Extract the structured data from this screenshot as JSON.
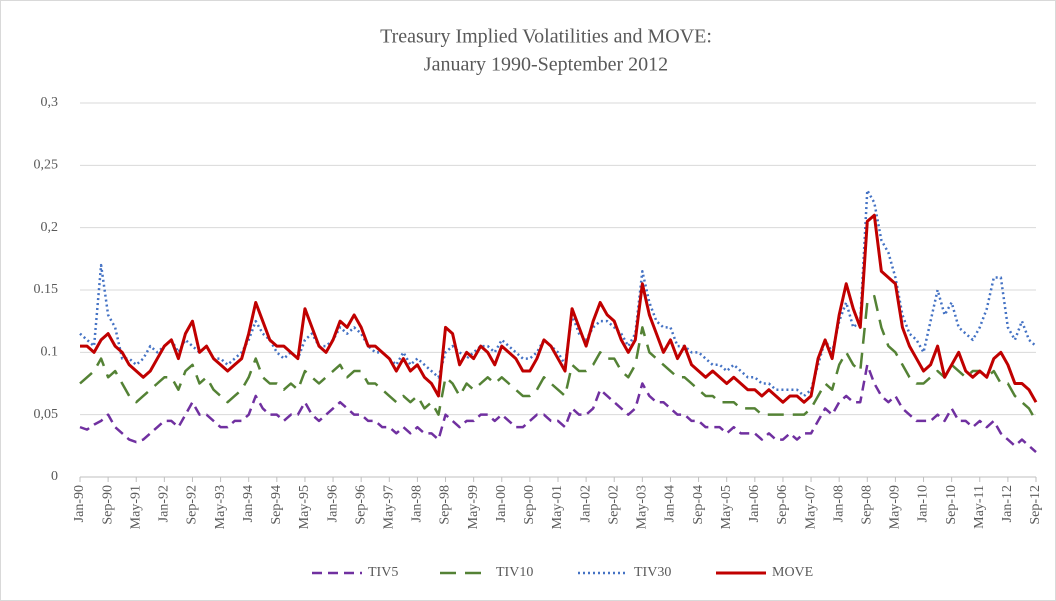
{
  "chart_data": {
    "type": "line",
    "title": "Treasury Implied Volatilities  and MOVE:",
    "subtitle": "January 1990-September 2012",
    "categories": [
      "Jan-90",
      null,
      null,
      null,
      "Sep-90",
      null,
      null,
      null,
      "May-91",
      null,
      null,
      null,
      "Jan-92",
      null,
      null,
      null,
      "Sep-92",
      null,
      null,
      null,
      "May-93",
      null,
      null,
      null,
      "Jan-94",
      null,
      null,
      null,
      "Sep-94",
      null,
      null,
      null,
      "May-95",
      null,
      null,
      null,
      "Jan-96",
      null,
      null,
      null,
      "Sep-96",
      null,
      null,
      null,
      "May-97",
      null,
      null,
      null,
      "Jan-98",
      null,
      null,
      null,
      "Sep-98",
      null,
      null,
      null,
      "May-99",
      null,
      null,
      null,
      "Jan-00",
      null,
      null,
      null,
      "Sep-00",
      null,
      null,
      null,
      "May-01",
      null,
      null,
      null,
      "Jan-02",
      null,
      null,
      null,
      "Sep-02",
      null,
      null,
      null,
      "May-03",
      null,
      null,
      null,
      "Jan-04",
      null,
      null,
      null,
      "Sep-04",
      null,
      null,
      null,
      "May-05",
      null,
      null,
      null,
      "Jan-06",
      null,
      null,
      null,
      "Sep-06",
      null,
      null,
      null,
      "May-07",
      null,
      null,
      null,
      "Jan-08",
      null,
      null,
      null,
      "Sep-08",
      null,
      null,
      null,
      "May-09",
      null,
      null,
      null,
      "Jan-10",
      null,
      null,
      null,
      "Sep-10",
      null,
      null,
      null,
      "May-11",
      null,
      null,
      null,
      "Jan-12",
      null,
      null,
      null,
      "Sep-12"
    ],
    "series": [
      {
        "name": "TIV5",
        "color": "#7030a0",
        "style": "dashed",
        "values": [
          0.04,
          0.038,
          0.042,
          0.045,
          0.05,
          0.04,
          0.035,
          0.03,
          0.028,
          0.03,
          0.035,
          0.04,
          0.045,
          0.045,
          0.04,
          0.05,
          0.06,
          0.05,
          0.05,
          0.045,
          0.04,
          0.04,
          0.045,
          0.045,
          0.05,
          0.065,
          0.055,
          0.05,
          0.05,
          0.045,
          0.05,
          0.05,
          0.06,
          0.05,
          0.045,
          0.05,
          0.055,
          0.06,
          0.055,
          0.05,
          0.05,
          0.045,
          0.045,
          0.04,
          0.04,
          0.035,
          0.04,
          0.035,
          0.04,
          0.035,
          0.035,
          0.03,
          0.05,
          0.045,
          0.04,
          0.045,
          0.045,
          0.05,
          0.05,
          0.045,
          0.05,
          0.045,
          0.04,
          0.04,
          0.045,
          0.05,
          0.05,
          0.045,
          0.045,
          0.04,
          0.055,
          0.05,
          0.05,
          0.055,
          0.07,
          0.065,
          0.06,
          0.055,
          0.05,
          0.055,
          0.075,
          0.065,
          0.06,
          0.06,
          0.055,
          0.05,
          0.05,
          0.045,
          0.045,
          0.04,
          0.04,
          0.04,
          0.035,
          0.04,
          0.035,
          0.035,
          0.035,
          0.03,
          0.035,
          0.03,
          0.03,
          0.035,
          0.03,
          0.035,
          0.035,
          0.045,
          0.055,
          0.05,
          0.06,
          0.065,
          0.06,
          0.06,
          0.09,
          0.075,
          0.065,
          0.06,
          0.065,
          0.055,
          0.05,
          0.045,
          0.045,
          0.045,
          0.05,
          0.045,
          0.055,
          0.045,
          0.045,
          0.04,
          0.045,
          0.04,
          0.045,
          0.035,
          0.03,
          0.025,
          0.03,
          0.025,
          0.02
        ]
      },
      {
        "name": "TIV10",
        "color": "#548235",
        "style": "longdash",
        "values": [
          0.075,
          0.08,
          0.085,
          0.095,
          0.08,
          0.085,
          0.075,
          0.065,
          0.06,
          0.065,
          0.07,
          0.075,
          0.08,
          0.08,
          0.07,
          0.085,
          0.09,
          0.075,
          0.08,
          0.07,
          0.065,
          0.06,
          0.065,
          0.07,
          0.08,
          0.095,
          0.08,
          0.075,
          0.075,
          0.07,
          0.075,
          0.07,
          0.085,
          0.08,
          0.075,
          0.08,
          0.085,
          0.09,
          0.08,
          0.085,
          0.085,
          0.075,
          0.075,
          0.07,
          0.065,
          0.06,
          0.065,
          0.06,
          0.065,
          0.055,
          0.06,
          0.05,
          0.08,
          0.075,
          0.065,
          0.075,
          0.07,
          0.075,
          0.08,
          0.075,
          0.08,
          0.075,
          0.07,
          0.065,
          0.065,
          0.07,
          0.08,
          0.075,
          0.07,
          0.065,
          0.09,
          0.085,
          0.085,
          0.09,
          0.1,
          0.095,
          0.095,
          0.085,
          0.08,
          0.09,
          0.12,
          0.1,
          0.095,
          0.09,
          0.085,
          0.08,
          0.08,
          0.075,
          0.07,
          0.065,
          0.065,
          0.06,
          0.06,
          0.06,
          0.055,
          0.055,
          0.055,
          0.05,
          0.05,
          0.05,
          0.05,
          0.05,
          0.05,
          0.05,
          0.055,
          0.065,
          0.075,
          0.07,
          0.09,
          0.1,
          0.09,
          0.085,
          0.14,
          0.145,
          0.12,
          0.105,
          0.1,
          0.09,
          0.08,
          0.075,
          0.075,
          0.08,
          0.085,
          0.08,
          0.09,
          0.085,
          0.08,
          0.085,
          0.085,
          0.08,
          0.085,
          0.075,
          0.075,
          0.065,
          0.06,
          0.055,
          0.045
        ]
      },
      {
        "name": "TIV30",
        "color": "#4472c4",
        "style": "dotted",
        "values": [
          0.115,
          0.11,
          0.105,
          0.17,
          0.13,
          0.12,
          0.095,
          0.095,
          0.09,
          0.095,
          0.105,
          0.1,
          0.105,
          0.11,
          0.1,
          0.11,
          0.105,
          0.1,
          0.105,
          0.095,
          0.095,
          0.09,
          0.095,
          0.1,
          0.11,
          0.125,
          0.115,
          0.11,
          0.1,
          0.095,
          0.1,
          0.095,
          0.11,
          0.115,
          0.105,
          0.105,
          0.11,
          0.12,
          0.115,
          0.12,
          0.115,
          0.105,
          0.1,
          0.1,
          0.095,
          0.09,
          0.1,
          0.09,
          0.095,
          0.09,
          0.085,
          0.08,
          0.1,
          0.105,
          0.1,
          0.095,
          0.1,
          0.105,
          0.105,
          0.1,
          0.11,
          0.105,
          0.1,
          0.095,
          0.095,
          0.1,
          0.11,
          0.105,
          0.1,
          0.09,
          0.13,
          0.115,
          0.11,
          0.12,
          0.125,
          0.125,
          0.12,
          0.115,
          0.105,
          0.115,
          0.165,
          0.14,
          0.125,
          0.12,
          0.12,
          0.105,
          0.105,
          0.1,
          0.1,
          0.095,
          0.09,
          0.09,
          0.085,
          0.09,
          0.085,
          0.08,
          0.08,
          0.075,
          0.075,
          0.07,
          0.07,
          0.07,
          0.07,
          0.065,
          0.07,
          0.09,
          0.11,
          0.1,
          0.125,
          0.14,
          0.12,
          0.125,
          0.23,
          0.22,
          0.19,
          0.18,
          0.16,
          0.13,
          0.115,
          0.11,
          0.1,
          0.125,
          0.15,
          0.13,
          0.14,
          0.12,
          0.115,
          0.11,
          0.12,
          0.135,
          0.16,
          0.16,
          0.12,
          0.11,
          0.125,
          0.11,
          0.105
        ]
      },
      {
        "name": "MOVE",
        "color": "#c00000",
        "style": "solid",
        "values": [
          0.105,
          0.105,
          0.1,
          0.11,
          0.115,
          0.105,
          0.1,
          0.09,
          0.085,
          0.08,
          0.085,
          0.095,
          0.105,
          0.11,
          0.095,
          0.115,
          0.125,
          0.1,
          0.105,
          0.095,
          0.09,
          0.085,
          0.09,
          0.095,
          0.115,
          0.14,
          0.125,
          0.11,
          0.105,
          0.105,
          0.1,
          0.095,
          0.135,
          0.12,
          0.105,
          0.1,
          0.11,
          0.125,
          0.12,
          0.13,
          0.12,
          0.105,
          0.105,
          0.1,
          0.095,
          0.085,
          0.095,
          0.085,
          0.09,
          0.08,
          0.075,
          0.065,
          0.12,
          0.115,
          0.09,
          0.1,
          0.095,
          0.105,
          0.1,
          0.09,
          0.105,
          0.1,
          0.095,
          0.085,
          0.085,
          0.095,
          0.11,
          0.105,
          0.095,
          0.085,
          0.135,
          0.12,
          0.105,
          0.125,
          0.14,
          0.13,
          0.125,
          0.11,
          0.1,
          0.11,
          0.155,
          0.13,
          0.115,
          0.1,
          0.11,
          0.095,
          0.105,
          0.09,
          0.085,
          0.08,
          0.085,
          0.08,
          0.075,
          0.08,
          0.075,
          0.07,
          0.07,
          0.065,
          0.07,
          0.065,
          0.06,
          0.065,
          0.065,
          0.06,
          0.065,
          0.095,
          0.11,
          0.095,
          0.13,
          0.155,
          0.135,
          0.12,
          0.205,
          0.21,
          0.165,
          0.16,
          0.155,
          0.12,
          0.105,
          0.095,
          0.085,
          0.09,
          0.105,
          0.08,
          0.09,
          0.1,
          0.085,
          0.08,
          0.085,
          0.08,
          0.095,
          0.1,
          0.09,
          0.075,
          0.075,
          0.07,
          0.06
        ]
      }
    ],
    "ylim": [
      0,
      0.3
    ],
    "yticks": [
      0,
      {
        "value": 0.05,
        "label": "0,05"
      },
      0.1,
      0.15,
      {
        "value": 0.2,
        "label": "0,2"
      },
      {
        "value": 0.25,
        "label": "0,25"
      },
      {
        "value": 0.3,
        "label": "0,3"
      }
    ],
    "grid": true,
    "legend": "bottom"
  }
}
